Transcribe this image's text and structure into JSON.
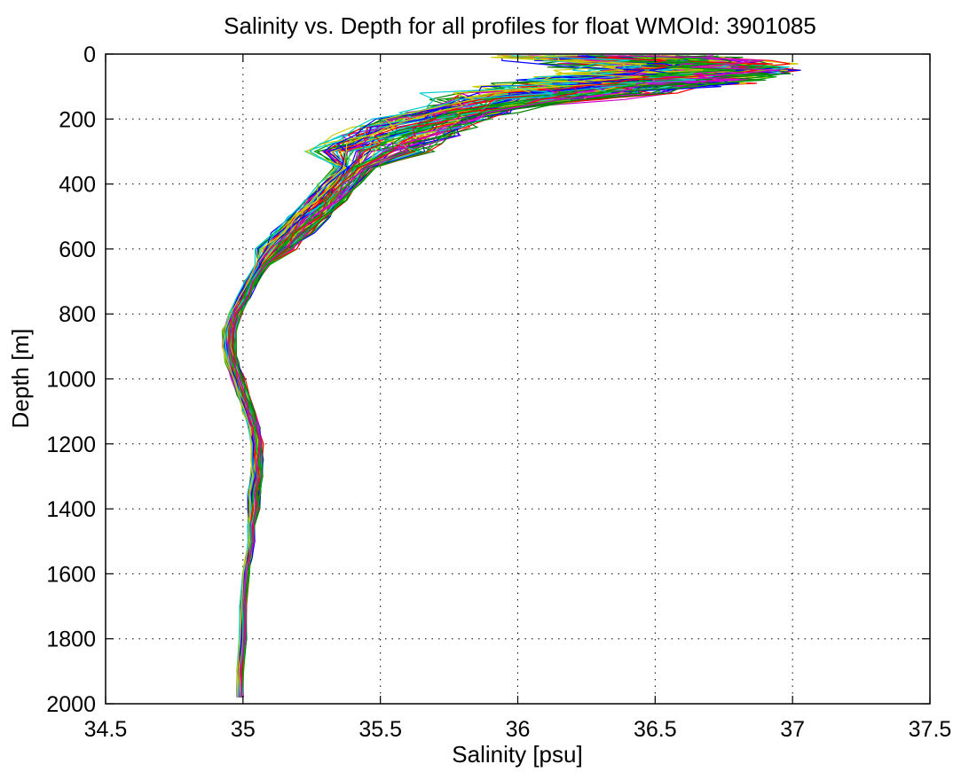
{
  "chart_data": {
    "type": "line",
    "title": "Salinity vs. Depth for all profiles for float WMOId: 3901085",
    "xlabel": "Salinity [psu]",
    "ylabel": "Depth [m]",
    "xlim": [
      34.5,
      37.5
    ],
    "ylim": [
      0,
      2000
    ],
    "y_reversed": true,
    "grid": true,
    "grid_style": "dotted",
    "x_ticks": [
      "34.5",
      "35",
      "35.5",
      "36",
      "36.5",
      "37",
      "37.5"
    ],
    "y_ticks": [
      "0",
      "200",
      "400",
      "600",
      "800",
      "1000",
      "1200",
      "1400",
      "1600",
      "1800",
      "2000"
    ],
    "series_colors": [
      "#ff0000",
      "#0000ff",
      "#00aa00",
      "#cc00cc",
      "#00cccc",
      "#cccc00",
      "#008000"
    ],
    "profile_count": 90,
    "depth_levels": [
      5,
      10,
      20,
      30,
      40,
      50,
      60,
      70,
      80,
      90,
      100,
      120,
      140,
      160,
      180,
      200,
      225,
      250,
      275,
      300,
      350,
      400,
      450,
      500,
      550,
      600,
      650,
      700,
      750,
      800,
      850,
      900,
      950,
      1000,
      1050,
      1100,
      1150,
      1200,
      1250,
      1300,
      1350,
      1400,
      1450,
      1500,
      1550,
      1600,
      1700,
      1800,
      1900,
      1980
    ],
    "mean_profile_salinity": [
      36.3,
      36.35,
      36.45,
      36.55,
      36.6,
      36.6,
      36.55,
      36.5,
      36.45,
      36.38,
      36.3,
      36.15,
      36.0,
      35.88,
      35.78,
      35.7,
      35.62,
      35.55,
      35.5,
      35.45,
      35.4,
      35.35,
      35.3,
      35.24,
      35.18,
      35.12,
      35.07,
      35.03,
      35.0,
      34.97,
      34.95,
      34.95,
      34.96,
      34.98,
      35.0,
      35.02,
      35.04,
      35.05,
      35.05,
      35.05,
      35.04,
      35.04,
      35.03,
      35.03,
      35.02,
      35.01,
      35.0,
      35.0,
      34.99,
      34.99
    ]
  }
}
